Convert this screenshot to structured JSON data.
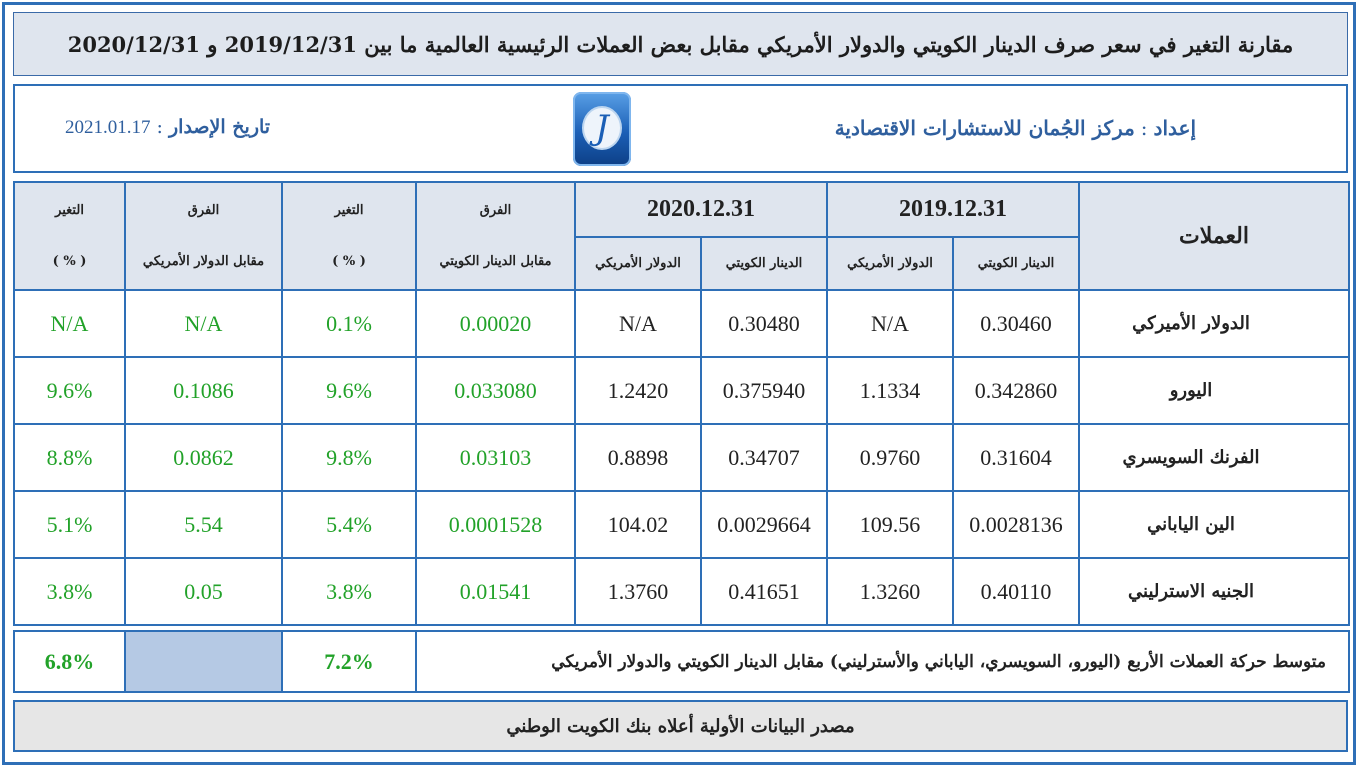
{
  "title": "مقارنة التغير في سعر صرف الدينار الكويتي والدولار الأمريكي مقابل بعض العملات الرئيسية العالمية ما بين 2019/12/31 و 2020/12/31",
  "info": {
    "prepared_label": "إعداد",
    "prepared_value": "مركز الجُمان للاستشارات الاقتصادية",
    "issue_label": "تاريخ الإصدار",
    "issue_date": "2021.01.17",
    "logo_glyph": "J"
  },
  "headers": {
    "currencies": "العملات",
    "year1": "2019.12.31",
    "year2": "2020.12.31",
    "kwd": "الدينار الكويتي",
    "usd": "الدولار الأمريكي",
    "diff": "الفرق",
    "vs_kwd": "مقابل الدينار الكويتي",
    "change": "التغير",
    "pct": "( % )",
    "vs_usd": "مقابل الدولار الأمريكي"
  },
  "rows": [
    {
      "name": "الدولار الأميركي",
      "kwd_2019": "0.30460",
      "usd_2019": "N/A",
      "kwd_2020": "0.30480",
      "usd_2020": "N/A",
      "diff_kwd": "0.00020",
      "chg_kwd": "0.1%",
      "diff_usd": "N/A",
      "chg_usd": "N/A"
    },
    {
      "name": "اليورو",
      "kwd_2019": "0.342860",
      "usd_2019": "1.1334",
      "kwd_2020": "0.375940",
      "usd_2020": "1.2420",
      "diff_kwd": "0.033080",
      "chg_kwd": "9.6%",
      "diff_usd": "0.1086",
      "chg_usd": "9.6%"
    },
    {
      "name": "الفرنك السويسري",
      "kwd_2019": "0.31604",
      "usd_2019": "0.9760",
      "kwd_2020": "0.34707",
      "usd_2020": "0.8898",
      "diff_kwd": "0.03103",
      "chg_kwd": "9.8%",
      "diff_usd": "0.0862",
      "chg_usd": "8.8%"
    },
    {
      "name": "الين الياباني",
      "kwd_2019": "0.0028136",
      "usd_2019": "109.56",
      "kwd_2020": "0.0029664",
      "usd_2020": "104.02",
      "diff_kwd": "0.0001528",
      "chg_kwd": "5.4%",
      "diff_usd": "5.54",
      "chg_usd": "5.1%"
    },
    {
      "name": "الجنيه الاسترليني",
      "kwd_2019": "0.40110",
      "usd_2019": "1.3260",
      "kwd_2020": "0.41651",
      "usd_2020": "1.3760",
      "diff_kwd": "0.01541",
      "chg_kwd": "3.8%",
      "diff_usd": "0.05",
      "chg_usd": "3.8%"
    }
  ],
  "average": {
    "label": "متوسط حركة العملات الأربع (اليورو، السويسري، الياباني والأسترليني) مقابل الدينار الكويتي والدولار الأمريكي",
    "chg_kwd": "7.2%",
    "chg_usd": "6.8%"
  },
  "source": "مصدر البيانات الأولية أعلاه بنك الكويت الوطني",
  "colors": {
    "border": "#2e6fb7",
    "header_bg": "#dfe5ee",
    "green": "#22a229",
    "blank_cell": "#b5c9e4"
  }
}
